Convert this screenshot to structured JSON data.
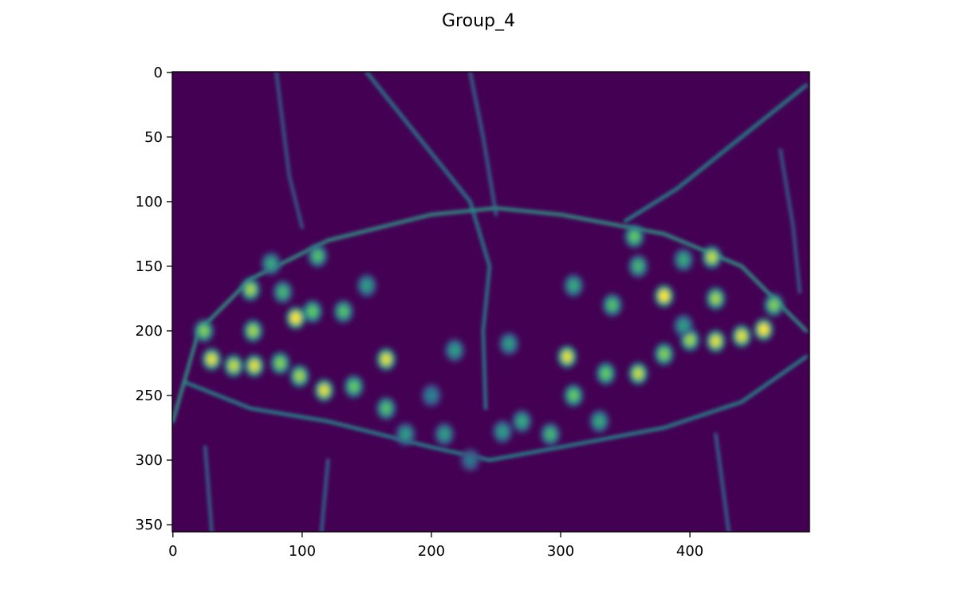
{
  "chart_data": {
    "type": "heatmap",
    "title": "Group_4",
    "xlabel": "",
    "ylabel": "",
    "colormap": "viridis",
    "image_width": 493,
    "image_height": 356,
    "xlim": [
      -0.5,
      492.5
    ],
    "ylim": [
      355.5,
      -0.5
    ],
    "y_inverted": true,
    "x_ticks": [
      0,
      100,
      200,
      300,
      400
    ],
    "x_tick_labels": [
      "0",
      "100",
      "200",
      "300",
      "400"
    ],
    "y_ticks": [
      0,
      50,
      100,
      150,
      200,
      250,
      300,
      350
    ],
    "y_tick_labels": [
      "0",
      "50",
      "100",
      "150",
      "200",
      "250",
      "300",
      "350"
    ],
    "value_range": [
      0,
      1
    ],
    "grid": false,
    "colors": {
      "background": "#440154",
      "low": "#3b1c5c",
      "mid": "#2a7f8e",
      "high": "#22a884",
      "peak": "#fde725"
    },
    "subject": "butterfly edge-magnitude response map",
    "bright_spots": [
      {
        "x": 30,
        "y": 222,
        "v": 0.95
      },
      {
        "x": 47,
        "y": 227,
        "v": 0.9
      },
      {
        "x": 63,
        "y": 227,
        "v": 0.95
      },
      {
        "x": 83,
        "y": 225,
        "v": 0.8
      },
      {
        "x": 98,
        "y": 235,
        "v": 0.85
      },
      {
        "x": 117,
        "y": 246,
        "v": 0.95
      },
      {
        "x": 140,
        "y": 243,
        "v": 0.75
      },
      {
        "x": 165,
        "y": 222,
        "v": 0.95
      },
      {
        "x": 95,
        "y": 190,
        "v": 1.0
      },
      {
        "x": 62,
        "y": 200,
        "v": 0.85
      },
      {
        "x": 60,
        "y": 168,
        "v": 0.85
      },
      {
        "x": 24,
        "y": 200,
        "v": 0.8
      },
      {
        "x": 112,
        "y": 142,
        "v": 0.7
      },
      {
        "x": 108,
        "y": 185,
        "v": 0.75
      },
      {
        "x": 132,
        "y": 185,
        "v": 0.7
      },
      {
        "x": 165,
        "y": 260,
        "v": 0.7
      },
      {
        "x": 180,
        "y": 280,
        "v": 0.55
      },
      {
        "x": 210,
        "y": 280,
        "v": 0.55
      },
      {
        "x": 255,
        "y": 278,
        "v": 0.55
      },
      {
        "x": 270,
        "y": 270,
        "v": 0.6
      },
      {
        "x": 292,
        "y": 280,
        "v": 0.65
      },
      {
        "x": 305,
        "y": 220,
        "v": 0.95
      },
      {
        "x": 310,
        "y": 250,
        "v": 0.75
      },
      {
        "x": 330,
        "y": 270,
        "v": 0.6
      },
      {
        "x": 335,
        "y": 233,
        "v": 0.75
      },
      {
        "x": 360,
        "y": 233,
        "v": 0.9
      },
      {
        "x": 380,
        "y": 218,
        "v": 0.8
      },
      {
        "x": 400,
        "y": 207,
        "v": 0.85
      },
      {
        "x": 420,
        "y": 208,
        "v": 0.95
      },
      {
        "x": 440,
        "y": 204,
        "v": 0.95
      },
      {
        "x": 457,
        "y": 199,
        "v": 1.0
      },
      {
        "x": 380,
        "y": 173,
        "v": 1.0
      },
      {
        "x": 417,
        "y": 143,
        "v": 0.9
      },
      {
        "x": 420,
        "y": 175,
        "v": 0.85
      },
      {
        "x": 465,
        "y": 180,
        "v": 0.8
      },
      {
        "x": 357,
        "y": 127,
        "v": 0.75
      },
      {
        "x": 360,
        "y": 150,
        "v": 0.65
      },
      {
        "x": 340,
        "y": 180,
        "v": 0.7
      },
      {
        "x": 310,
        "y": 165,
        "v": 0.6
      },
      {
        "x": 260,
        "y": 210,
        "v": 0.55
      },
      {
        "x": 218,
        "y": 215,
        "v": 0.55
      },
      {
        "x": 150,
        "y": 165,
        "v": 0.55
      },
      {
        "x": 76,
        "y": 148,
        "v": 0.6
      },
      {
        "x": 85,
        "y": 170,
        "v": 0.65
      },
      {
        "x": 395,
        "y": 145,
        "v": 0.6
      },
      {
        "x": 395,
        "y": 196,
        "v": 0.55
      },
      {
        "x": 230,
        "y": 300,
        "v": 0.4
      },
      {
        "x": 200,
        "y": 250,
        "v": 0.45
      }
    ],
    "ridges": [
      {
        "points": [
          [
            0,
            270
          ],
          [
            20,
            200
          ],
          [
            60,
            160
          ],
          [
            120,
            130
          ],
          [
            200,
            110
          ],
          [
            250,
            105
          ],
          [
            300,
            110
          ],
          [
            380,
            125
          ],
          [
            440,
            150
          ],
          [
            490,
            200
          ]
        ],
        "v": 0.55
      },
      {
        "points": [
          [
            10,
            240
          ],
          [
            60,
            260
          ],
          [
            120,
            270
          ],
          [
            200,
            290
          ],
          [
            245,
            300
          ],
          [
            300,
            290
          ],
          [
            380,
            275
          ],
          [
            440,
            255
          ],
          [
            490,
            220
          ]
        ],
        "v": 0.5
      },
      {
        "points": [
          [
            150,
            0
          ],
          [
            190,
            50
          ],
          [
            230,
            100
          ],
          [
            245,
            150
          ],
          [
            240,
            200
          ],
          [
            242,
            260
          ]
        ],
        "v": 0.45
      },
      {
        "points": [
          [
            490,
            10
          ],
          [
            440,
            50
          ],
          [
            390,
            90
          ],
          [
            350,
            115
          ]
        ],
        "v": 0.5
      },
      {
        "points": [
          [
            230,
            0
          ],
          [
            240,
            50
          ],
          [
            250,
            110
          ]
        ],
        "v": 0.35
      },
      {
        "points": [
          [
            25,
            290
          ],
          [
            30,
            355
          ]
        ],
        "v": 0.35
      },
      {
        "points": [
          [
            120,
            300
          ],
          [
            115,
            355
          ]
        ],
        "v": 0.35
      },
      {
        "points": [
          [
            420,
            280
          ],
          [
            430,
            355
          ]
        ],
        "v": 0.35
      },
      {
        "points": [
          [
            80,
            0
          ],
          [
            90,
            80
          ],
          [
            100,
            120
          ]
        ],
        "v": 0.3
      },
      {
        "points": [
          [
            470,
            60
          ],
          [
            480,
            120
          ],
          [
            485,
            170
          ]
        ],
        "v": 0.3
      }
    ]
  }
}
